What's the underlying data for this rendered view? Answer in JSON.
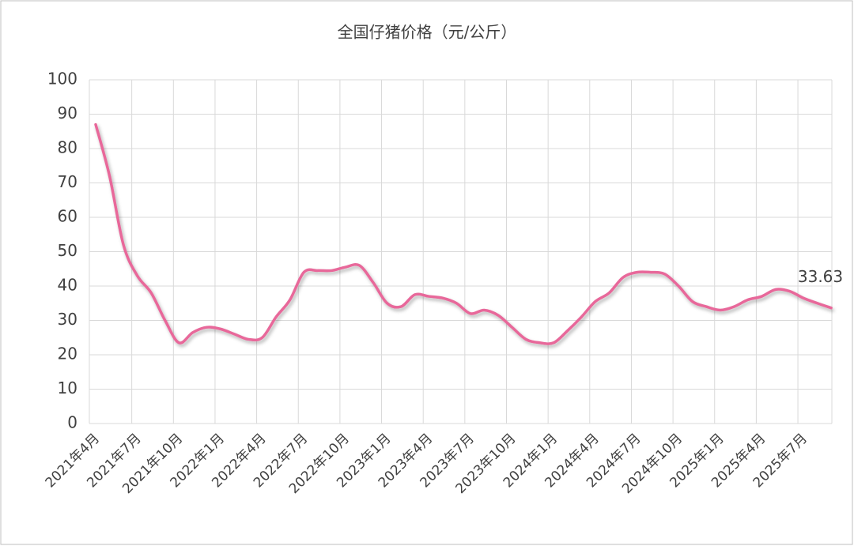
{
  "chart_data": {
    "type": "line",
    "title": "全国仔猪价格（元/公斤）",
    "categories": [
      "2021年4月",
      null,
      null,
      "2021年7月",
      null,
      null,
      "2021年10月",
      null,
      null,
      "2022年1月",
      null,
      null,
      "2022年4月",
      null,
      null,
      "2022年7月",
      null,
      null,
      "2022年10月",
      null,
      null,
      "2023年1月",
      null,
      null,
      "2023年4月",
      null,
      null,
      "2023年7月",
      null,
      null,
      "2023年10月",
      null,
      null,
      "2024年1月",
      null,
      null,
      "2024年4月",
      null,
      null,
      "2024年7月",
      null,
      null,
      "2024年10月",
      null,
      null,
      "2025年1月",
      null,
      null,
      "2025年4月",
      null,
      null,
      "2025年7月",
      null,
      null
    ],
    "values": [
      87,
      72,
      52,
      43,
      38,
      30,
      23.5,
      26.5,
      28,
      27.5,
      26,
      24.5,
      25,
      31,
      36,
      44,
      44.5,
      44.5,
      45.5,
      46,
      41,
      35,
      34,
      37.5,
      37,
      36.5,
      35,
      32,
      33,
      31.5,
      28,
      24.5,
      23.5,
      23.5,
      27,
      31,
      35.5,
      38,
      42.5,
      44,
      44,
      43.5,
      40,
      35.5,
      34,
      33,
      34,
      36,
      37,
      39,
      38.5,
      36.5,
      35,
      33.63
    ],
    "color": "#e8679a",
    "ylim": [
      0,
      100
    ],
    "yticks": [
      0,
      10,
      20,
      30,
      40,
      50,
      60,
      70,
      80,
      90,
      100
    ],
    "grid": true
  }
}
